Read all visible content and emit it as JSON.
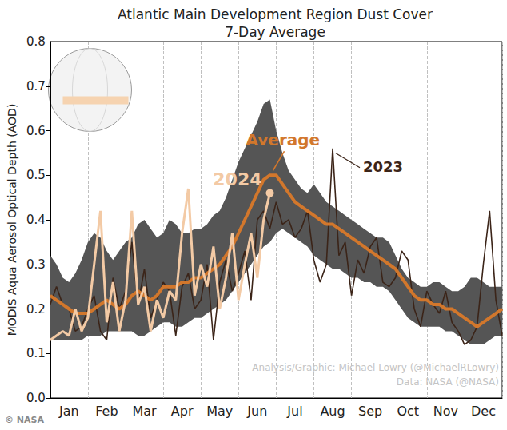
{
  "chart_data": {
    "type": "line",
    "title": "Atlantic Main Development Region Dust Cover",
    "subtitle": "7-Day Average",
    "y_label": "MODIS Aqua Aerosol Optical Depth (AOD)",
    "categories": [
      null,
      null,
      null,
      "Jan",
      null,
      null,
      null,
      null,
      null,
      "Feb",
      null,
      null,
      null,
      null,
      null,
      "Mar",
      null,
      null,
      null,
      null,
      null,
      "Apr",
      null,
      null,
      null,
      null,
      null,
      "May",
      null,
      null,
      null,
      null,
      null,
      "Jun",
      null,
      null,
      null,
      null,
      null,
      "Jul",
      null,
      null,
      null,
      null,
      null,
      "Aug",
      null,
      null,
      null,
      null,
      null,
      "Sep",
      null,
      null,
      null,
      null,
      null,
      "Oct",
      null,
      null,
      null,
      null,
      null,
      "Nov",
      null,
      null,
      null,
      null,
      null,
      "Dec",
      null,
      null,
      null
    ],
    "series": [
      {
        "name": "Average",
        "color": "#d2772c",
        "line_style": "solid",
        "values": [
          0.23,
          0.22,
          0.21,
          0.2,
          0.19,
          0.19,
          0.19,
          0.2,
          0.21,
          0.22,
          0.21,
          0.2,
          0.21,
          0.23,
          0.24,
          0.23,
          0.22,
          0.23,
          0.25,
          0.25,
          0.25,
          0.26,
          0.26,
          0.27,
          0.27,
          0.28,
          0.29,
          0.3,
          0.32,
          0.34,
          0.37,
          0.4,
          0.43,
          0.46,
          0.49,
          0.5,
          0.5,
          0.48,
          0.46,
          0.44,
          0.43,
          0.42,
          0.41,
          0.4,
          0.39,
          0.39,
          0.38,
          0.37,
          0.36,
          0.35,
          0.34,
          0.33,
          0.32,
          0.31,
          0.3,
          0.29,
          0.27,
          0.25,
          0.23,
          0.22,
          0.22,
          0.21,
          0.21,
          0.2,
          0.2,
          0.19,
          0.18,
          0.17,
          0.16,
          0.17,
          0.18,
          0.19,
          0.2
        ]
      },
      {
        "name": "2024",
        "color": "#f3caa5",
        "line_style": "solid",
        "marker": "circle",
        "values": [
          0.13,
          0.14,
          0.15,
          0.14,
          0.2,
          0.15,
          0.18,
          0.3,
          0.42,
          0.17,
          0.26,
          0.15,
          0.22,
          0.42,
          0.21,
          0.25,
          0.15,
          0.22,
          0.18,
          0.24,
          0.22,
          0.37,
          0.47,
          0.23,
          0.3,
          0.25,
          0.34,
          0.2,
          0.27,
          0.37,
          0.22,
          0.3,
          0.37,
          0.27,
          0.4,
          0.46,
          null,
          null,
          null,
          null,
          null,
          null,
          null,
          null,
          null,
          null,
          null,
          null,
          null,
          null,
          null,
          null,
          null,
          null,
          null,
          null,
          null,
          null,
          null,
          null,
          null,
          null,
          null,
          null,
          null,
          null,
          null,
          null,
          null,
          null,
          null,
          null,
          null
        ]
      },
      {
        "name": "2023",
        "color": "#3b2418",
        "line_style": "solid",
        "values": [
          0.21,
          0.25,
          0.21,
          0.2,
          0.15,
          0.16,
          0.2,
          0.23,
          0.15,
          0.13,
          0.27,
          0.2,
          0.24,
          0.35,
          0.21,
          0.29,
          0.18,
          0.22,
          0.26,
          0.24,
          0.14,
          0.25,
          0.28,
          0.2,
          0.22,
          0.3,
          0.13,
          0.26,
          0.31,
          0.24,
          0.28,
          0.33,
          0.22,
          0.4,
          0.42,
          0.38,
          0.44,
          0.39,
          0.4,
          0.36,
          0.38,
          0.42,
          0.31,
          0.26,
          0.3,
          0.56,
          0.32,
          0.35,
          0.23,
          0.31,
          0.28,
          0.34,
          0.36,
          0.26,
          0.25,
          0.27,
          0.33,
          0.31,
          0.2,
          0.16,
          0.24,
          0.21,
          0.19,
          0.24,
          0.17,
          0.15,
          0.12,
          0.13,
          0.16,
          0.3,
          0.42,
          0.22,
          0.14
        ]
      }
    ],
    "band": {
      "color": "#555555",
      "lower": [
        0.13,
        0.13,
        0.13,
        0.13,
        0.13,
        0.13,
        0.14,
        0.14,
        0.14,
        0.15,
        0.15,
        0.15,
        0.15,
        0.15,
        0.14,
        0.14,
        0.15,
        0.16,
        0.17,
        0.17,
        0.16,
        0.16,
        0.17,
        0.18,
        0.18,
        0.19,
        0.2,
        0.21,
        0.22,
        0.24,
        0.26,
        0.28,
        0.3,
        0.32,
        0.34,
        0.35,
        0.37,
        0.38,
        0.37,
        0.36,
        0.35,
        0.34,
        0.32,
        0.31,
        0.3,
        0.29,
        0.29,
        0.28,
        0.27,
        0.27,
        0.26,
        0.26,
        0.25,
        0.25,
        0.24,
        0.22,
        0.2,
        0.18,
        0.17,
        0.16,
        0.16,
        0.16,
        0.16,
        0.15,
        0.15,
        0.14,
        0.13,
        0.12,
        0.12,
        0.12,
        0.13,
        0.14,
        0.14
      ],
      "upper": [
        0.32,
        0.3,
        0.27,
        0.26,
        0.28,
        0.31,
        0.35,
        0.37,
        0.36,
        0.33,
        0.31,
        0.33,
        0.35,
        0.36,
        0.39,
        0.4,
        0.38,
        0.36,
        0.37,
        0.4,
        0.39,
        0.37,
        0.37,
        0.38,
        0.38,
        0.39,
        0.41,
        0.42,
        0.45,
        0.49,
        0.53,
        0.56,
        0.59,
        0.62,
        0.66,
        0.67,
        0.6,
        0.55,
        0.51,
        0.49,
        0.47,
        0.46,
        0.48,
        0.46,
        0.44,
        0.43,
        0.42,
        0.41,
        0.4,
        0.39,
        0.38,
        0.37,
        0.36,
        0.36,
        0.35,
        0.32,
        0.29,
        0.27,
        0.26,
        0.25,
        0.25,
        0.26,
        0.26,
        0.25,
        0.24,
        0.24,
        0.25,
        0.27,
        0.27,
        0.26,
        0.25,
        0.25,
        0.25
      ]
    },
    "ylim": [
      0,
      0.8
    ],
    "yticks": [
      {
        "value": 0,
        "label": "0.0"
      },
      0.1,
      0.2,
      0.3,
      0.4,
      0.5,
      0.6,
      0.7,
      0.8
    ],
    "grid": "x",
    "annotations": [
      "Analysis/Graphic: Michael Lowry (@MichaelRLowry)",
      "Data: NASA (@NASA)",
      "© NASA"
    ]
  }
}
